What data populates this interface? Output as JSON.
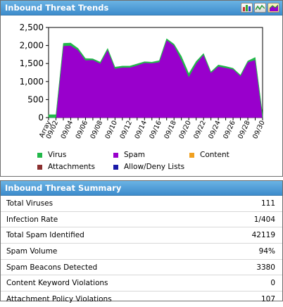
{
  "trends": {
    "title": "Inbound Threat Trends",
    "buttons": [
      {
        "name": "bar-chart-view-button",
        "icon": "bar-chart-icon"
      },
      {
        "name": "line-chart-view-button",
        "icon": "line-chart-icon"
      },
      {
        "name": "area-chart-view-button",
        "icon": "area-chart-icon"
      }
    ]
  },
  "chart_data": {
    "type": "area",
    "stacked": true,
    "x": [
      "Array",
      "09/02",
      "",
      "09/04",
      "",
      "09/06",
      "",
      "09/08",
      "",
      "09/10",
      "",
      "09/12",
      "",
      "09/14",
      "",
      "09/16",
      "",
      "09/18",
      "",
      "09/20",
      "",
      "09/22",
      "",
      "09/24",
      "",
      "09/26",
      "",
      "09/28",
      "",
      "09/30"
    ],
    "ylim": [
      0,
      2500
    ],
    "yticks": [
      0,
      500,
      1000,
      1500,
      2000,
      2500
    ],
    "ytick_labels": [
      "0",
      "500",
      "1,000",
      "1,500",
      "2,000",
      "2,500"
    ],
    "series": [
      {
        "name": "Allow/Deny Lists",
        "color": "#1a1aa8",
        "values": [
          0,
          0,
          0,
          0,
          0,
          0,
          0,
          0,
          0,
          0,
          0,
          0,
          0,
          0,
          0,
          0,
          0,
          0,
          0,
          0,
          0,
          0,
          0,
          0,
          0,
          0,
          0,
          0,
          0,
          0
        ]
      },
      {
        "name": "Attachments",
        "color": "#8b3030",
        "values": [
          0,
          0,
          0,
          0,
          0,
          0,
          0,
          0,
          0,
          0,
          0,
          0,
          0,
          0,
          0,
          0,
          0,
          0,
          0,
          0,
          0,
          0,
          0,
          0,
          0,
          0,
          0,
          0,
          0,
          0
        ]
      },
      {
        "name": "Content",
        "color": "#f0a020",
        "values": [
          0,
          0,
          0,
          0,
          0,
          0,
          0,
          0,
          0,
          0,
          0,
          0,
          0,
          0,
          0,
          0,
          0,
          0,
          0,
          0,
          0,
          0,
          0,
          0,
          0,
          0,
          0,
          0,
          0,
          0
        ]
      },
      {
        "name": "Spam",
        "color": "#9900cc",
        "values": [
          0,
          0,
          1990,
          2000,
          1870,
          1590,
          1600,
          1500,
          1880,
          1360,
          1390,
          1390,
          1450,
          1520,
          1510,
          1540,
          2150,
          2000,
          1600,
          1130,
          1500,
          1740,
          1240,
          1420,
          1380,
          1340,
          1150,
          1540,
          1600,
          0
        ]
      },
      {
        "name": "Virus",
        "color": "#22b84a",
        "values": [
          80,
          80,
          70,
          70,
          50,
          50,
          30,
          40,
          40,
          40,
          40,
          40,
          40,
          30,
          30,
          40,
          40,
          40,
          100,
          90,
          60,
          40,
          30,
          40,
          40,
          30,
          30,
          30,
          70,
          80
        ]
      }
    ],
    "grid": false,
    "legend_position": "bottom"
  },
  "legend": [
    {
      "label": "Virus",
      "color": "#22b84a"
    },
    {
      "label": "Spam",
      "color": "#9900cc"
    },
    {
      "label": "Content",
      "color": "#f0a020"
    },
    {
      "label": "Attachments",
      "color": "#8b3030"
    },
    {
      "label": "Allow/Deny Lists",
      "color": "#1a1aa8"
    }
  ],
  "summary": {
    "title": "Inbound Threat Summary",
    "rows": [
      {
        "label": "Total Viruses",
        "value": "111"
      },
      {
        "label": "Infection Rate",
        "value": "1/404"
      },
      {
        "label": "Total Spam Identified",
        "value": "42119"
      },
      {
        "label": "Spam Volume",
        "value": "94%"
      },
      {
        "label": "Spam Beacons Detected",
        "value": "3380"
      },
      {
        "label": "Content Keyword Violations",
        "value": "0"
      },
      {
        "label": "Attachment Policy Violations",
        "value": "107"
      }
    ]
  }
}
